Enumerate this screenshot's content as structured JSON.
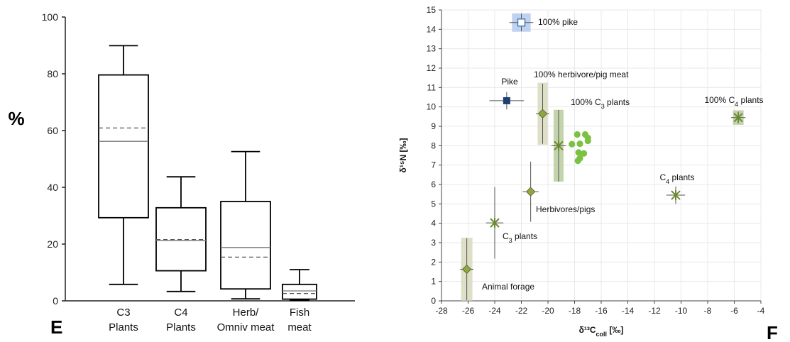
{
  "chart_data": [
    {
      "type": "box",
      "panel_label": "E",
      "ylabel": "%",
      "ylim": [
        0,
        100
      ],
      "yticks": [
        0,
        20,
        40,
        60,
        80,
        100
      ],
      "categories": [
        {
          "line1": "C3",
          "line2": "Plants"
        },
        {
          "line1": "C4",
          "line2": "Plants"
        },
        {
          "line1": "Herb/",
          "line2": "Omniv meat"
        },
        {
          "line1": "Fish",
          "line2": "meat"
        }
      ],
      "boxes": [
        {
          "min": 5.8,
          "q1": 29.3,
          "median": 56.2,
          "mean": 60.9,
          "q3": 79.6,
          "max": 89.9
        },
        {
          "min": 3.3,
          "q1": 10.6,
          "median": 21.3,
          "mean": 21.6,
          "q3": 32.8,
          "max": 43.7
        },
        {
          "min": 0.7,
          "q1": 4.2,
          "median": 18.8,
          "mean": 15.4,
          "q3": 35.0,
          "max": 52.6
        },
        {
          "min": 0.2,
          "q1": 0.6,
          "median": 3.5,
          "mean": 2.6,
          "q3": 5.8,
          "max": 11.0
        }
      ]
    },
    {
      "type": "scatter",
      "panel_label": "F",
      "xlabel": "δ¹³C",
      "xlabel_sub": "coll",
      "xlabel_unit": " [‰]",
      "ylabel": "δ¹⁵N [‰]",
      "xlim": [
        -28,
        -4
      ],
      "ylim": [
        0,
        15
      ],
      "xticks": [
        -28,
        -26,
        -24,
        -22,
        -20,
        -18,
        -16,
        -14,
        -12,
        -10,
        -8,
        -6,
        -4
      ],
      "yticks": [
        0,
        1,
        2,
        3,
        4,
        5,
        6,
        7,
        8,
        9,
        10,
        11,
        12,
        13,
        14,
        15
      ],
      "grid": true,
      "points": [
        {
          "label": "100% pike",
          "x": -22.0,
          "y": 14.35,
          "xerr": 0.9,
          "yerr": 0.45,
          "marker": "square-open",
          "color": "#4a7cc2",
          "box": {
            "w": 1.4,
            "h": 0.95,
            "color": "#b9cdeb"
          }
        },
        {
          "label": "Pike",
          "x": -23.1,
          "y": 10.32,
          "xerr": 1.3,
          "yerr": 0.45,
          "marker": "square",
          "color": "#1f3f73"
        },
        {
          "label": "100% herbivore/pig meat",
          "x": -20.4,
          "y": 9.65,
          "xerr": 0.5,
          "yerr": 1.55,
          "marker": "diamond",
          "color": "#8fa645",
          "box": {
            "w": 0.75,
            "h": 3.2,
            "color": "#d9dcc0"
          }
        },
        {
          "label_pre": "100% C",
          "label_sub": "3",
          "label_post": " plants",
          "x": -19.2,
          "y": 8.0,
          "xerr": 0.55,
          "yerr": 1.85,
          "marker": "star",
          "color": "#6b8a2f",
          "box": {
            "w": 0.75,
            "h": 3.7,
            "color": "#bccfa3"
          }
        },
        {
          "label_pre": "100% C",
          "label_sub": "4",
          "label_post": " plants",
          "x": -5.7,
          "y": 9.45,
          "xerr": 0.55,
          "yerr": 0.3,
          "marker": "star",
          "color": "#6b8a2f",
          "box": {
            "w": 0.8,
            "h": 0.75,
            "color": "#bccfa3"
          }
        },
        {
          "label": "Herbivores/pigs",
          "x": -21.3,
          "y": 5.63,
          "xerr": 0.6,
          "yerr": 1.55,
          "marker": "diamond",
          "color": "#8fa645"
        },
        {
          "label_pre": "C",
          "label_sub": "4",
          "label_post": " plants",
          "x": -10.4,
          "y": 5.45,
          "xerr": 0.7,
          "yerr": 0.45,
          "marker": "star",
          "color": "#6b8a2f"
        },
        {
          "label_pre": "C",
          "label_sub": "3",
          "label_post": " plants",
          "x": -24.0,
          "y": 4.02,
          "xerr": 0.65,
          "yerr": 1.85,
          "marker": "star",
          "color": "#6b8a2f"
        },
        {
          "label": "Animal forage",
          "x": -26.1,
          "y": 1.63,
          "xerr": 0.5,
          "yerr": 1.6,
          "marker": "diamond",
          "color": "#8fa645",
          "box": {
            "w": 0.85,
            "h": 3.25,
            "color": "#d9dcc0"
          }
        }
      ],
      "sample_points": [
        {
          "x": -17.8,
          "y": 8.58
        },
        {
          "x": -17.2,
          "y": 8.58
        },
        {
          "x": -17.0,
          "y": 8.4
        },
        {
          "x": -17.0,
          "y": 8.25
        },
        {
          "x": -17.6,
          "y": 8.1
        },
        {
          "x": -18.2,
          "y": 8.08
        },
        {
          "x": -17.7,
          "y": 7.65
        },
        {
          "x": -17.3,
          "y": 7.6
        },
        {
          "x": -17.6,
          "y": 7.35
        },
        {
          "x": -17.75,
          "y": 7.22
        }
      ]
    }
  ]
}
